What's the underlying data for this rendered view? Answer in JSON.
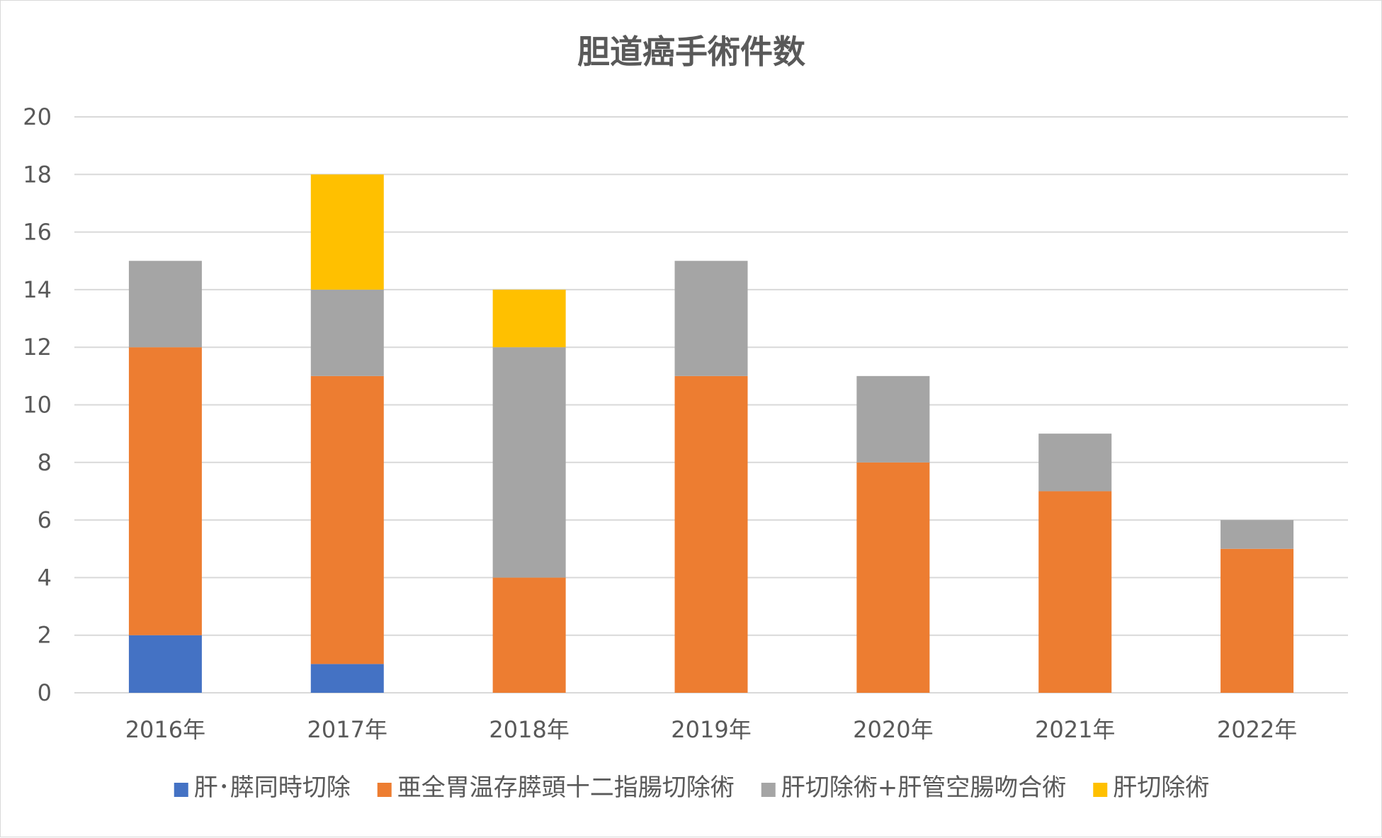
{
  "chart_data": {
    "type": "bar",
    "stacked": true,
    "title": "胆道癌手術件数",
    "xlabel": "",
    "ylabel": "",
    "categories": [
      "2016年",
      "2017年",
      "2018年",
      "2019年",
      "2020年",
      "2021年",
      "2022年"
    ],
    "ylim": [
      0,
      20
    ],
    "yticks": [
      0,
      2,
      4,
      6,
      8,
      10,
      12,
      14,
      16,
      18,
      20
    ],
    "grid": true,
    "legend_position": "bottom",
    "series": [
      {
        "name": "肝･膵同時切除",
        "color": "#4472C4",
        "values": [
          2,
          1,
          0,
          0,
          0,
          0,
          0
        ]
      },
      {
        "name": "亜全胃温存膵頭十二指腸切除術",
        "color": "#ED7D31",
        "values": [
          10,
          10,
          4,
          11,
          8,
          7,
          5
        ]
      },
      {
        "name": "肝切除術+肝管空腸吻合術",
        "color": "#A5A5A5",
        "values": [
          3,
          3,
          8,
          4,
          3,
          2,
          1
        ]
      },
      {
        "name": "肝切除術",
        "color": "#FFC000",
        "values": [
          0,
          4,
          2,
          0,
          0,
          0,
          0
        ]
      }
    ]
  }
}
